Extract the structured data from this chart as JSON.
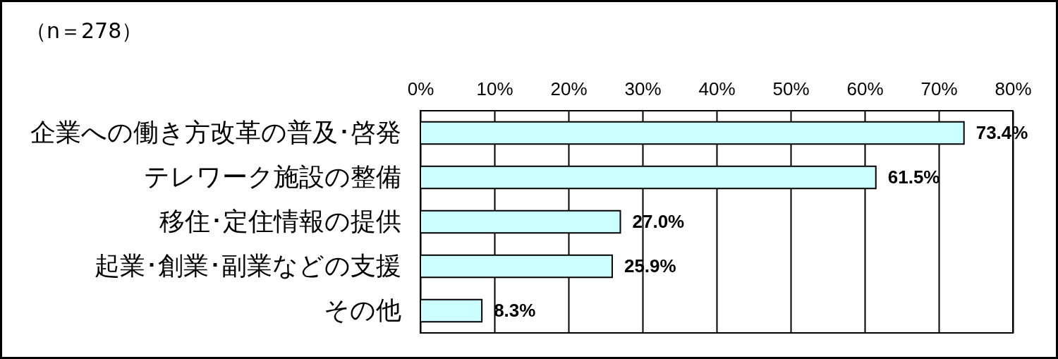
{
  "chart_data": {
    "type": "bar",
    "orientation": "horizontal",
    "annotations": [
      "（n＝278）"
    ],
    "categories": [
      "企業への働き方改革の普及･啓発",
      "テレワーク施設の整備",
      "移住･定住情報の提供",
      "起業･創業･副業などの支援",
      "その他"
    ],
    "values": [
      73.4,
      61.5,
      27.0,
      25.9,
      8.3
    ],
    "color": "#ccffff",
    "value_labels": [
      "73.4%",
      "61.5%",
      "27.0%",
      "25.9%",
      "8.3%"
    ],
    "xlim": [
      0,
      80
    ],
    "xticks": [
      {
        "value": 0,
        "label": "0%"
      },
      {
        "value": 10,
        "label": "10%"
      },
      {
        "value": 20,
        "label": "20%"
      },
      {
        "value": 30,
        "label": "30%"
      },
      {
        "value": 40,
        "label": "40%"
      },
      {
        "value": 50,
        "label": "50%"
      },
      {
        "value": 60,
        "label": "60%"
      },
      {
        "value": 70,
        "label": "70%"
      },
      {
        "value": 80,
        "label": "80%"
      }
    ],
    "grid": "x"
  }
}
